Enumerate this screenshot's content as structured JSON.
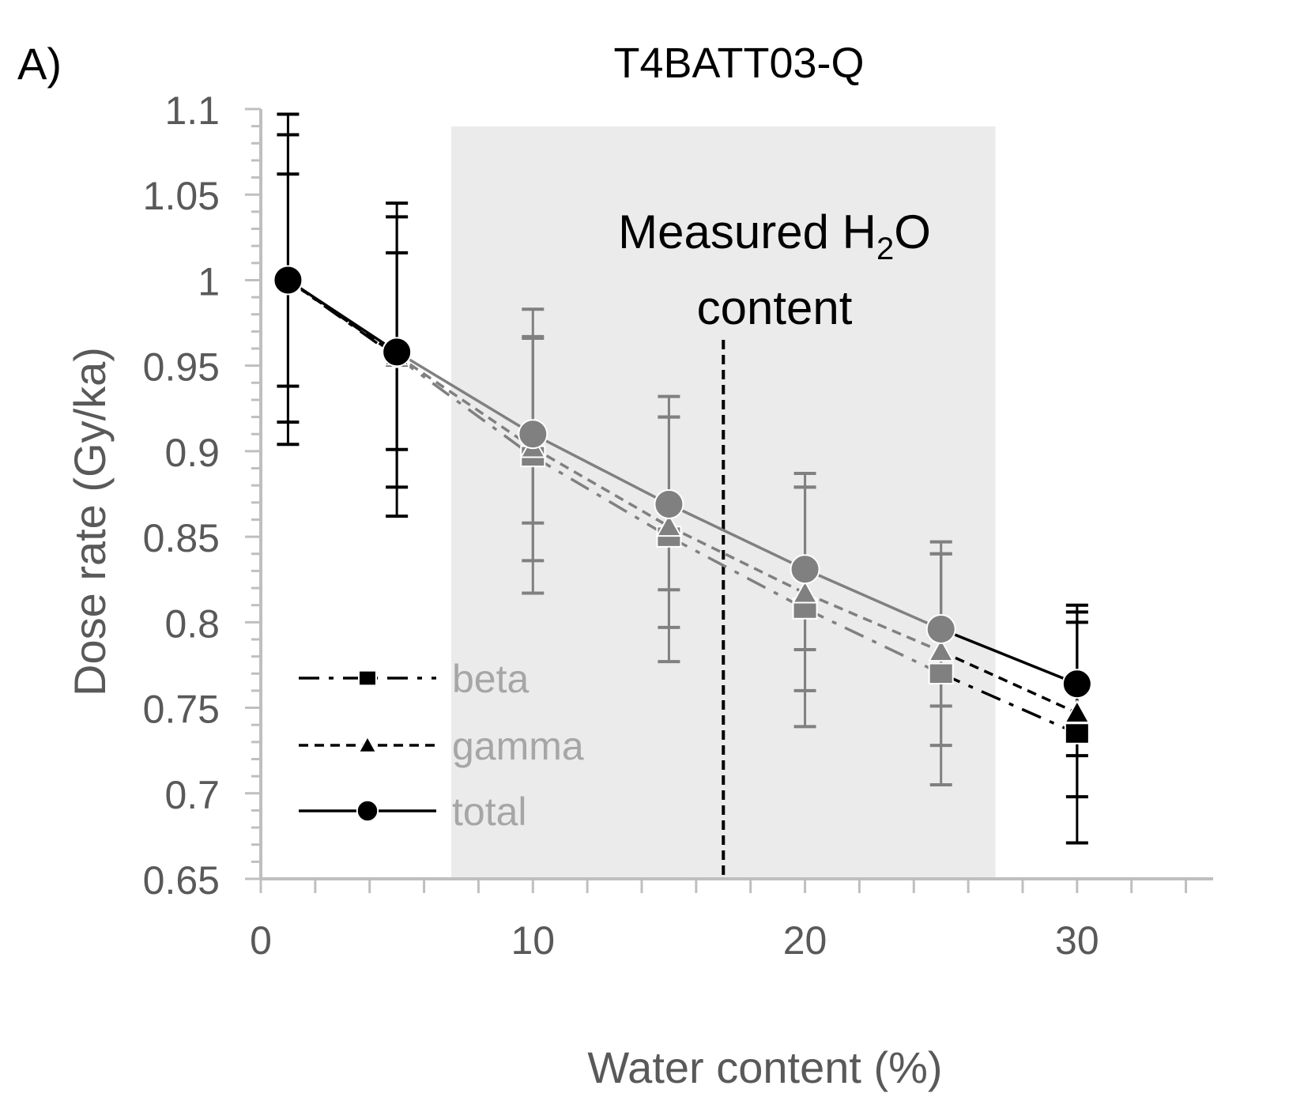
{
  "panel_label": "A)",
  "chart_data": {
    "type": "line",
    "title": "T4BATT03-Q",
    "xlabel": "Water content (%)",
    "ylabel": "Dose rate (Gy/ka)",
    "xlim": [
      0,
      35
    ],
    "ylim": [
      0.65,
      1.1
    ],
    "x_ticks": [
      0,
      10,
      20,
      30
    ],
    "x_tick_labels": [
      "0",
      "10",
      "20",
      "30"
    ],
    "y_ticks": [
      0.65,
      0.7,
      0.75,
      0.8,
      0.85,
      0.9,
      0.95,
      1.0,
      1.05,
      1.1
    ],
    "y_tick_labels": [
      "0.65",
      "0.7",
      "0.75",
      "0.8",
      "0.85",
      "0.9",
      "0.95",
      "1",
      "1.05",
      "1.1"
    ],
    "grid": false,
    "legend_position": "bottom-left",
    "x": [
      1,
      5,
      10,
      15,
      20,
      25,
      30
    ],
    "series": [
      {
        "name": "beta",
        "marker": "square",
        "dash": "dash-dot",
        "values": [
          1.0,
          0.955,
          0.897,
          0.85,
          0.808,
          0.77,
          0.735
        ],
        "error_low": [
          0.904,
          0.862,
          0.817,
          0.777,
          0.739,
          0.705,
          0.671
        ],
        "error_high": [
          1.097,
          1.045,
          0.983,
          0.932,
          0.887,
          0.847,
          0.81
        ]
      },
      {
        "name": "gamma",
        "marker": "triangle",
        "dash": "short-dash",
        "values": [
          1.0,
          0.956,
          0.902,
          0.856,
          0.817,
          0.783,
          0.747
        ],
        "error_low": [
          0.917,
          0.879,
          0.836,
          0.797,
          0.76,
          0.728,
          0.698
        ],
        "error_high": [
          1.085,
          1.037,
          0.967,
          0.92,
          0.879,
          0.84,
          0.8
        ]
      },
      {
        "name": "total",
        "marker": "circle",
        "dash": "solid",
        "values": [
          1.0,
          0.958,
          0.91,
          0.869,
          0.831,
          0.796,
          0.764
        ],
        "error_low": [
          0.938,
          0.901,
          0.858,
          0.819,
          0.784,
          0.751,
          0.722
        ],
        "error_high": [
          1.062,
          1.016,
          0.966,
          0.92,
          0.879,
          0.84,
          0.806
        ]
      }
    ],
    "shaded_region": {
      "x_from": 7,
      "x_to": 27,
      "color": "#ebebeb"
    },
    "vertical_line": {
      "x": 17,
      "style": "dashed"
    },
    "annotation": {
      "line1_main": "Measured H",
      "line1_sub": "2",
      "line1_tail": "O",
      "line2": "content"
    },
    "colors": {
      "inside_band": "#808080",
      "outside_band": "#000000",
      "axis": "#bfbfbf",
      "tick_text": "#595959",
      "legend_text": "#a6a6a6"
    }
  }
}
